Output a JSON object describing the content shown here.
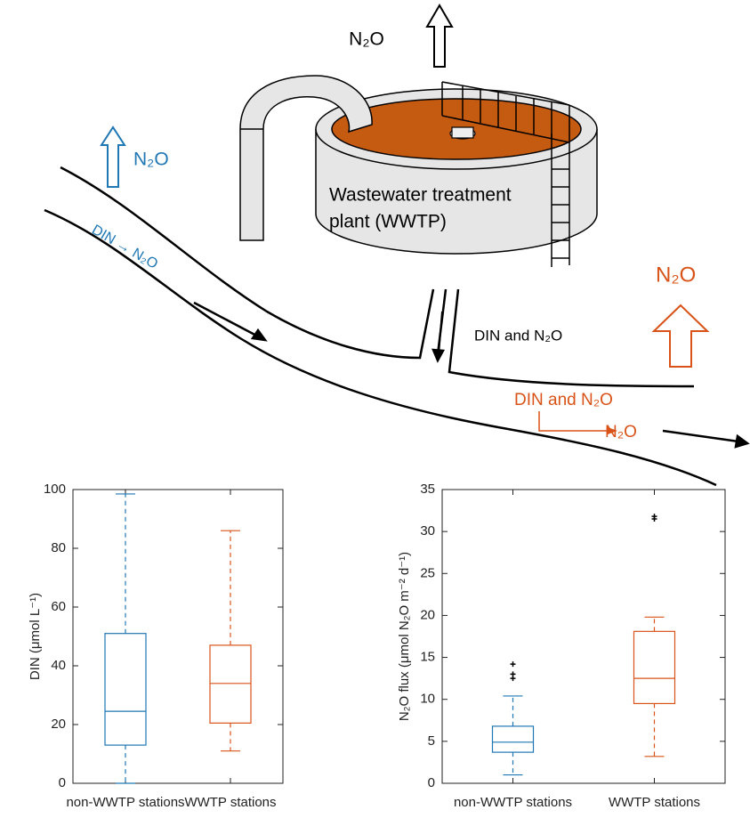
{
  "diagram": {
    "n2o_top": "N₂O",
    "n2o_left": "N₂O",
    "din_to_n2o": "DIN → N₂O",
    "wwtp_label": [
      "Wastewater treatment",
      "plant (WWTP)"
    ],
    "din_and_n2o_tributary": "DIN and N₂O",
    "n2o_right": "N₂O",
    "din_and_n2o_river": "DIN and N₂O",
    "n2o_river": "N₂O"
  },
  "chart_data": [
    {
      "type": "box",
      "ylabel": "DIN (μmol L⁻¹)",
      "categories": [
        "non-WWTP stations",
        "WWTP stations"
      ],
      "colors": [
        "#1f77b4",
        "#d95319"
      ],
      "boxes": [
        {
          "min": 0,
          "q1": 13,
          "median": 24.5,
          "q3": 51,
          "max": 98.5,
          "outliers": []
        },
        {
          "min": 11,
          "q1": 20.5,
          "median": 34,
          "q3": 47,
          "max": 86,
          "outliers": []
        }
      ],
      "ylim": [
        0,
        100
      ],
      "yticks": [
        0,
        20,
        40,
        60,
        80,
        100
      ]
    },
    {
      "type": "box",
      "ylabel": "N₂O flux (μmol N₂O m⁻² d⁻¹)",
      "categories": [
        "non-WWTP stations",
        "WWTP stations"
      ],
      "colors": [
        "#1f77b4",
        "#d95319"
      ],
      "boxes": [
        {
          "min": 1,
          "q1": 3.7,
          "median": 4.9,
          "q3": 6.8,
          "max": 10.4,
          "outliers": [
            12.5,
            13,
            14.2
          ]
        },
        {
          "min": 3.2,
          "q1": 9.5,
          "median": 12.5,
          "q3": 18.1,
          "max": 19.8,
          "outliers": [
            31.5,
            31.8
          ]
        }
      ],
      "ylim": [
        0,
        35
      ],
      "yticks": [
        0,
        5,
        10,
        15,
        20,
        25,
        30,
        35
      ]
    }
  ]
}
